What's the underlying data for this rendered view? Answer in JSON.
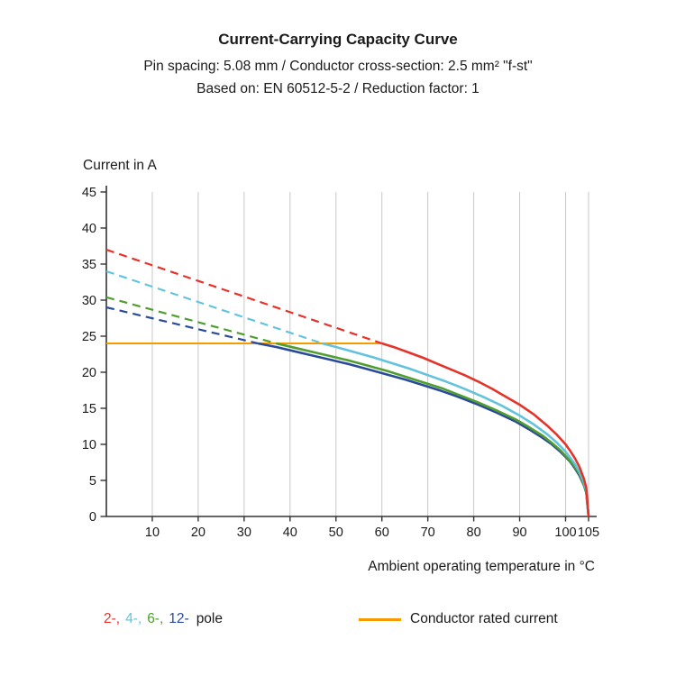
{
  "chart_data": {
    "type": "line",
    "title": "Current-Carrying Capacity Curve",
    "subtitle1": "Pin spacing: 5.08 mm / Conductor cross-section: 2.5 mm² \"f-st\"",
    "subtitle2": "Based on: EN 60512-5-2 / Reduction factor: 1",
    "xlabel": "Ambient operating temperature in °C",
    "ylabel": "Current in A",
    "xlim": [
      0,
      107
    ],
    "ylim": [
      0,
      45
    ],
    "xticks": [
      10,
      20,
      30,
      40,
      50,
      60,
      70,
      80,
      90,
      100,
      105
    ],
    "yticks": [
      0,
      5,
      10,
      15,
      20,
      25,
      30,
      35,
      40,
      45
    ],
    "grid": "vertical-only",
    "grid_color": "#c8c8c8",
    "axis_color": "#333333",
    "series": [
      {
        "name": "conductor-rated-current",
        "color": "#f59b00",
        "style": "solid",
        "width": 2,
        "points": [
          [
            0,
            24
          ],
          [
            60,
            24
          ]
        ]
      },
      {
        "name": "2-pole-dashed",
        "color": "#e5332a",
        "style": "dashed",
        "width": 2.2,
        "points": [
          [
            0,
            37
          ],
          [
            60,
            24
          ]
        ]
      },
      {
        "name": "4-pole-dashed",
        "color": "#63c3dd",
        "style": "dashed",
        "width": 2.2,
        "points": [
          [
            0,
            34
          ],
          [
            47,
            24
          ]
        ]
      },
      {
        "name": "6-pole-dashed",
        "color": "#4f9e2f",
        "style": "dashed",
        "width": 2.2,
        "points": [
          [
            0,
            30.4
          ],
          [
            37,
            24
          ]
        ]
      },
      {
        "name": "12-pole-dashed",
        "color": "#2a4b9c",
        "style": "dashed",
        "width": 2.2,
        "points": [
          [
            0,
            29
          ],
          [
            33,
            24
          ]
        ]
      },
      {
        "name": "12-pole",
        "color": "#2a4b9c",
        "style": "solid",
        "width": 2.6,
        "points": [
          [
            33,
            24
          ],
          [
            37,
            23.5
          ],
          [
            41,
            22.9
          ],
          [
            45,
            22.3
          ],
          [
            49,
            21.7
          ],
          [
            53,
            21.1
          ],
          [
            57,
            20.4
          ],
          [
            61,
            19.7
          ],
          [
            65,
            19.0
          ],
          [
            69,
            18.2
          ],
          [
            73,
            17.4
          ],
          [
            77,
            16.5
          ],
          [
            81,
            15.5
          ],
          [
            85,
            14.4
          ],
          [
            89,
            13.2
          ],
          [
            92,
            12.1
          ],
          [
            95,
            10.9
          ],
          [
            97,
            10.0
          ],
          [
            99,
            8.9
          ],
          [
            101,
            7.6
          ],
          [
            102,
            6.7
          ],
          [
            103,
            5.7
          ],
          [
            104,
            4.3
          ],
          [
            104.5,
            3.3
          ],
          [
            105,
            0
          ]
        ]
      },
      {
        "name": "6-pole",
        "color": "#4f9e2f",
        "style": "solid",
        "width": 2.6,
        "points": [
          [
            37,
            24
          ],
          [
            41,
            23.4
          ],
          [
            45,
            22.8
          ],
          [
            49,
            22.2
          ],
          [
            53,
            21.6
          ],
          [
            57,
            20.9
          ],
          [
            61,
            20.2
          ],
          [
            65,
            19.4
          ],
          [
            69,
            18.6
          ],
          [
            73,
            17.8
          ],
          [
            77,
            16.8
          ],
          [
            81,
            15.8
          ],
          [
            85,
            14.7
          ],
          [
            89,
            13.5
          ],
          [
            92,
            12.4
          ],
          [
            95,
            11.2
          ],
          [
            97,
            10.2
          ],
          [
            99,
            9.1
          ],
          [
            101,
            7.7
          ],
          [
            102,
            6.9
          ],
          [
            103,
            5.9
          ],
          [
            104,
            4.4
          ],
          [
            104.5,
            3.4
          ],
          [
            105,
            0
          ]
        ]
      },
      {
        "name": "4-pole",
        "color": "#63c3dd",
        "style": "solid",
        "width": 2.6,
        "points": [
          [
            47,
            24
          ],
          [
            50,
            23.5
          ],
          [
            54,
            22.8
          ],
          [
            58,
            22.1
          ],
          [
            62,
            21.3
          ],
          [
            66,
            20.5
          ],
          [
            70,
            19.6
          ],
          [
            74,
            18.7
          ],
          [
            78,
            17.7
          ],
          [
            82,
            16.6
          ],
          [
            86,
            15.4
          ],
          [
            90,
            14.0
          ],
          [
            93,
            12.8
          ],
          [
            96,
            11.4
          ],
          [
            98,
            10.3
          ],
          [
            100,
            9.0
          ],
          [
            102,
            7.3
          ],
          [
            103,
            6.2
          ],
          [
            104,
            4.7
          ],
          [
            104.5,
            3.6
          ],
          [
            105,
            0
          ]
        ]
      },
      {
        "name": "2-pole",
        "color": "#e5332a",
        "style": "solid",
        "width": 2.6,
        "points": [
          [
            60,
            24
          ],
          [
            63,
            23.4
          ],
          [
            66,
            22.7
          ],
          [
            69,
            22.0
          ],
          [
            72,
            21.2
          ],
          [
            75,
            20.4
          ],
          [
            78,
            19.6
          ],
          [
            81,
            18.7
          ],
          [
            84,
            17.7
          ],
          [
            87,
            16.6
          ],
          [
            90,
            15.5
          ],
          [
            93,
            14.2
          ],
          [
            96,
            12.6
          ],
          [
            98,
            11.4
          ],
          [
            100,
            10.0
          ],
          [
            101,
            9.1
          ],
          [
            102,
            8.1
          ],
          [
            103,
            6.9
          ],
          [
            104,
            5.2
          ],
          [
            104.5,
            4.0
          ],
          [
            105,
            0
          ]
        ]
      }
    ]
  },
  "legend": {
    "poles": [
      {
        "label": "2-,",
        "color": "#e5332a"
      },
      {
        "label": "4-,",
        "color": "#63c3dd"
      },
      {
        "label": "6-,",
        "color": "#4f9e2f"
      },
      {
        "label": "12-",
        "color": "#2a4b9c"
      }
    ],
    "poles_suffix": "pole",
    "rated_label": "Conductor rated current",
    "rated_color": "#f59b00"
  }
}
